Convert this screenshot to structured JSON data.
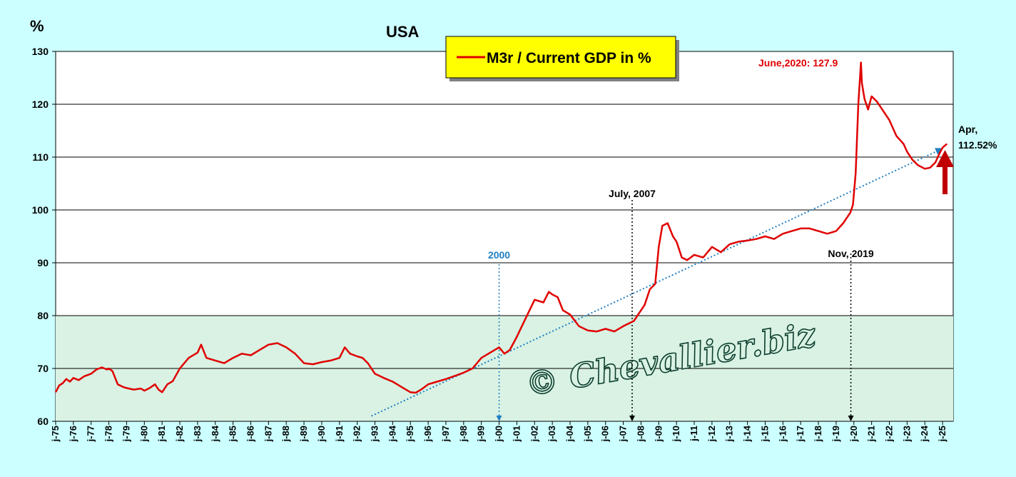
{
  "chart_data": {
    "type": "line",
    "title": "USA",
    "y_unit": "%",
    "legend_label": "M3r / Current GDP in %",
    "legend_position": "top-center",
    "ylim": [
      60,
      130
    ],
    "y_ticks": [
      60,
      70,
      80,
      90,
      100,
      110,
      120,
      130
    ],
    "xlim": [
      1975.0,
      2025.6
    ],
    "x_ticks": [
      "j-75",
      "j-76",
      "j-77",
      "j-78",
      "j-79",
      "j-80",
      "j-81",
      "j-82",
      "j-83",
      "j-84",
      "j-85",
      "j-86",
      "j-87",
      "j-88",
      "j-89",
      "j-90",
      "j-91",
      "j-92",
      "j-93",
      "j-94",
      "j-95",
      "j-96",
      "j-97",
      "j-98",
      "j-99",
      "j-00",
      "j-01",
      "j-02",
      "j-03",
      "j-04",
      "j-05",
      "j-06",
      "j-07",
      "j-08",
      "j-09",
      "j-10",
      "j-11",
      "j-12",
      "j-13",
      "j-14",
      "j-15",
      "j-16",
      "j-17",
      "j-18",
      "j-19",
      "j-20",
      "j-21",
      "j-22",
      "j-23",
      "j-24",
      "j-25"
    ],
    "grid": "horizontal",
    "shaded_band": {
      "from": 60,
      "to": 80,
      "color": "#d9f2e3"
    },
    "series": [
      {
        "name": "M3r / Current GDP in %",
        "color": "#e00000",
        "x": [
          1975.0,
          1975.2,
          1975.4,
          1975.6,
          1975.8,
          1976.0,
          1976.3,
          1976.6,
          1977.0,
          1977.3,
          1977.6,
          1977.9,
          1978.0,
          1978.2,
          1978.5,
          1978.8,
          1979.0,
          1979.4,
          1979.8,
          1980.0,
          1980.3,
          1980.6,
          1980.8,
          1981.0,
          1981.3,
          1981.6,
          1982.0,
          1982.5,
          1983.0,
          1983.2,
          1983.5,
          1984.0,
          1984.5,
          1985.0,
          1985.5,
          1986.0,
          1986.5,
          1987.0,
          1987.5,
          1988.0,
          1988.5,
          1989.0,
          1989.5,
          1990.0,
          1990.5,
          1991.0,
          1991.3,
          1991.6,
          1992.0,
          1992.3,
          1992.6,
          1993.0,
          1993.5,
          1994.0,
          1994.5,
          1995.0,
          1995.3,
          1995.6,
          1996.0,
          1996.5,
          1997.0,
          1997.5,
          1998.0,
          1998.5,
          1999.0,
          1999.5,
          2000.0,
          2000.3,
          2000.6,
          2001.0,
          2001.5,
          2002.0,
          2002.5,
          2002.8,
          2003.0,
          2003.3,
          2003.6,
          2004.0,
          2004.5,
          2005.0,
          2005.5,
          2006.0,
          2006.5,
          2007.0,
          2007.3,
          2007.6,
          2007.9,
          2008.2,
          2008.5,
          2008.8,
          2009.0,
          2009.2,
          2009.5,
          2009.8,
          2010.0,
          2010.3,
          2010.6,
          2011.0,
          2011.5,
          2012.0,
          2012.5,
          2013.0,
          2013.5,
          2014.0,
          2014.5,
          2015.0,
          2015.5,
          2016.0,
          2016.5,
          2017.0,
          2017.5,
          2018.0,
          2018.5,
          2019.0,
          2019.4,
          2019.8,
          2019.95,
          2020.1,
          2020.25,
          2020.4,
          2020.45,
          2020.6,
          2020.8,
          2021.0,
          2021.3,
          2021.6,
          2022.0,
          2022.4,
          2022.8,
          2023.0,
          2023.3,
          2023.6,
          2024.0,
          2024.3,
          2024.6,
          2024.8,
          2025.0,
          2025.25
        ],
        "values": [
          65.5,
          66.8,
          67.2,
          68.0,
          67.5,
          68.2,
          67.8,
          68.5,
          69.0,
          69.8,
          70.2,
          69.8,
          70.0,
          69.5,
          67.0,
          66.5,
          66.3,
          66.0,
          66.2,
          65.8,
          66.3,
          67.0,
          66.0,
          65.5,
          67.0,
          67.6,
          70.0,
          72.0,
          73.0,
          74.5,
          72.0,
          71.5,
          71.0,
          72.0,
          72.8,
          72.5,
          73.5,
          74.5,
          74.8,
          74.0,
          72.8,
          71.0,
          70.8,
          71.2,
          71.5,
          72.0,
          74.0,
          72.8,
          72.3,
          72.0,
          71.0,
          69.0,
          68.2,
          67.5,
          66.5,
          65.5,
          65.4,
          66.0,
          67.0,
          67.5,
          68.0,
          68.6,
          69.2,
          70.0,
          72.0,
          73.0,
          74.0,
          72.8,
          73.5,
          76.0,
          79.5,
          83.0,
          82.5,
          84.5,
          84.0,
          83.5,
          81.0,
          80.2,
          78.0,
          77.2,
          77.0,
          77.5,
          77.0,
          78.0,
          78.5,
          79.0,
          80.5,
          82.0,
          85.0,
          86.0,
          93.0,
          97.0,
          97.5,
          95.0,
          94.0,
          91.0,
          90.5,
          91.5,
          91.0,
          93.0,
          92.0,
          93.5,
          94.0,
          94.2,
          94.5,
          95.0,
          94.5,
          95.5,
          96.0,
          96.5,
          96.5,
          96.0,
          95.5,
          96.0,
          97.5,
          99.5,
          101.0,
          107.0,
          120.0,
          127.9,
          124.0,
          121.0,
          119.0,
          121.5,
          120.5,
          119.0,
          117.0,
          114.0,
          112.5,
          111.0,
          109.5,
          108.5,
          107.8,
          108.0,
          109.0,
          110.5,
          111.8,
          112.52
        ]
      }
    ],
    "trend_line": {
      "x": [
        1992.8,
        2024.8
      ],
      "y": [
        61.0,
        111.3
      ],
      "color": "#1f7fc4"
    },
    "vertical_markers": [
      {
        "x": 2000.0,
        "label": "2000",
        "color": "#1f7fc4"
      },
      {
        "x": 2007.5,
        "label": "July, 2007",
        "color": "#000000"
      },
      {
        "x": 2019.83,
        "label": "Nov, 2019",
        "color": "#000000"
      }
    ],
    "annotations": {
      "peak_label": "June,2020: 127.9",
      "latest_label_line1": "Apr,",
      "latest_label_line2": "112.52%"
    },
    "watermark": "© Chevallier.biz"
  }
}
